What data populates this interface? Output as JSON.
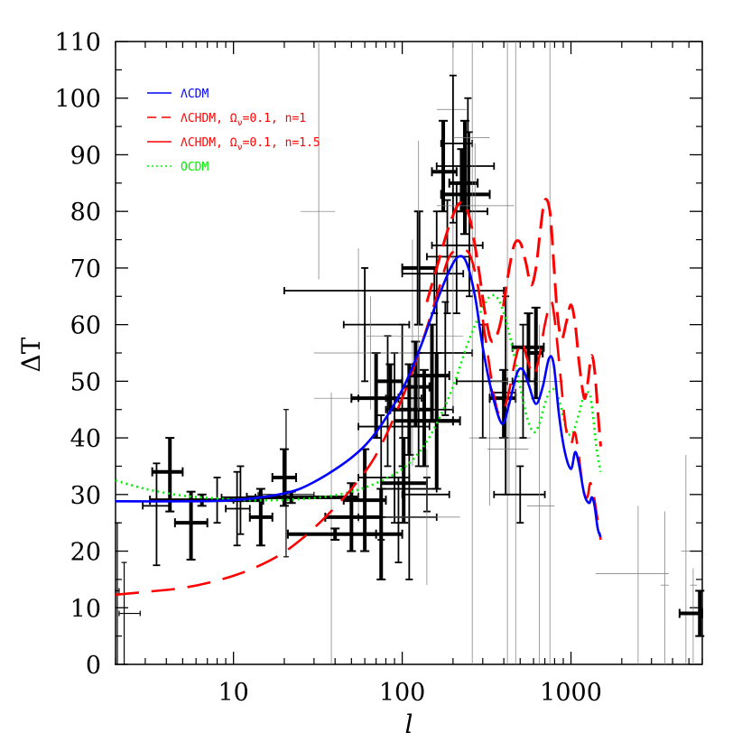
{
  "chart_data": {
    "type": "line",
    "xlabel": "l",
    "ylabel": "ΔT",
    "xscale": "log",
    "xlim": [
      2,
      6000
    ],
    "ylim": [
      0,
      110
    ],
    "x_ticks": [
      {
        "value": 10,
        "label": "10"
      },
      {
        "value": 100,
        "label": "100"
      },
      {
        "value": 1000,
        "label": "1000"
      }
    ],
    "y_ticks": [
      {
        "value": 0,
        "label": "0"
      },
      {
        "value": 10,
        "label": "10"
      },
      {
        "value": 20,
        "label": "20"
      },
      {
        "value": 30,
        "label": "30"
      },
      {
        "value": 40,
        "label": "40"
      },
      {
        "value": 50,
        "label": "50"
      },
      {
        "value": 60,
        "label": "60"
      },
      {
        "value": 70,
        "label": "70"
      },
      {
        "value": 80,
        "label": "80"
      },
      {
        "value": 90,
        "label": "90"
      },
      {
        "value": 100,
        "label": "100"
      },
      {
        "value": 110,
        "label": "110"
      }
    ],
    "legend_position": "top-left",
    "series": [
      {
        "name": "ΛCDM",
        "label_main": "ΛCDM",
        "label_sub": "",
        "label_tail": "",
        "color": "#0000ff",
        "dash": "solid",
        "x": [
          2,
          5,
          10,
          20,
          30,
          50,
          70,
          100,
          130,
          160,
          190,
          215,
          240,
          270,
          300,
          340,
          390,
          430,
          480,
          520,
          560,
          620,
          680,
          740,
          790,
          850,
          920,
          1000,
          1060,
          1120,
          1200,
          1280,
          1330,
          1380,
          1440,
          1500
        ],
        "y": [
          28.8,
          28.8,
          29.0,
          30.2,
          32.2,
          36.5,
          41.0,
          48.5,
          56.5,
          64.0,
          69.5,
          72.0,
          71.0,
          65.0,
          56.0,
          48.0,
          42.5,
          46.0,
          51.5,
          52.0,
          49.5,
          46.0,
          49.0,
          54.0,
          53.0,
          44.0,
          37.5,
          34.5,
          37.5,
          35.0,
          30.0,
          28.5,
          29.5,
          28.0,
          24.0,
          22.5
        ]
      },
      {
        "name": "ΛCHDM, Ων=0.1, n=1",
        "label_main": "ΛCHDM, Ω",
        "label_sub": "ν",
        "label_tail": "=0.1, n=1",
        "color": "#ff0000",
        "dash": "long",
        "x": [
          2,
          3,
          5,
          8,
          12,
          18,
          25,
          35,
          50,
          70,
          100,
          130,
          160,
          190,
          220,
          250,
          280,
          310,
          350,
          380,
          420,
          470,
          510,
          550,
          600,
          650,
          700,
          760,
          800,
          860,
          930,
          1000,
          1050,
          1100,
          1180,
          1250,
          1300,
          1360,
          1430,
          1500
        ],
        "y": [
          12.3,
          12.8,
          13.5,
          14.8,
          16.5,
          19.0,
          22.0,
          26.0,
          31.0,
          37.0,
          47.0,
          56.5,
          65.0,
          72.0,
          73.0,
          72.5,
          67.0,
          58.0,
          47.5,
          44.0,
          47.0,
          54.0,
          57.0,
          54.0,
          51.0,
          54.5,
          60.0,
          64.0,
          61.0,
          52.0,
          42.0,
          39.0,
          41.0,
          38.0,
          31.0,
          29.5,
          32.0,
          30.0,
          26.0,
          22.0
        ]
      },
      {
        "name": "ΛCHDM, Ων=0.1, n=1.5",
        "label_main": "ΛCHDM, Ω",
        "label_sub": "ν",
        "label_tail": "=0.1, n=1.5",
        "color": "#ff0000",
        "dash": "dashed",
        "x": [
          140,
          160,
          190,
          220,
          250,
          280,
          310,
          340,
          380,
          420,
          460,
          500,
          540,
          580,
          620,
          660,
          700,
          750,
          790,
          830,
          880,
          940,
          1000,
          1060,
          1120,
          1200,
          1260,
          1320,
          1380,
          1440,
          1500
        ],
        "y": [
          64.0,
          70.0,
          77.5,
          81.5,
          79.0,
          71.0,
          62.0,
          57.0,
          60.0,
          68.0,
          74.0,
          74.5,
          71.0,
          67.0,
          70.0,
          77.0,
          82.0,
          80.0,
          71.0,
          62.0,
          57.5,
          60.5,
          63.5,
          60.0,
          53.0,
          47.0,
          50.0,
          54.5,
          52.0,
          45.0,
          38.5
        ]
      },
      {
        "name": "OCDM",
        "label_main": "OCDM",
        "label_sub": "",
        "label_tail": "",
        "color": "#00ee00",
        "dash": "dotted",
        "x": [
          2,
          3,
          5,
          8,
          12,
          18,
          25,
          35,
          50,
          70,
          100,
          130,
          160,
          200,
          240,
          280,
          320,
          360,
          400,
          450,
          500,
          550,
          600,
          650,
          700,
          760,
          820,
          880,
          940,
          1000,
          1060,
          1120,
          1180,
          1250,
          1300,
          1350,
          1420,
          1500
        ],
        "y": [
          32.5,
          31.0,
          29.8,
          29.3,
          29.0,
          29.0,
          29.2,
          29.6,
          30.5,
          32.0,
          34.5,
          38.0,
          42.5,
          49.0,
          56.0,
          61.0,
          64.5,
          65.0,
          62.0,
          56.0,
          49.0,
          43.5,
          41.0,
          42.5,
          46.0,
          48.5,
          48.0,
          45.0,
          41.5,
          40.5,
          42.0,
          44.5,
          47.0,
          48.0,
          47.5,
          44.0,
          38.0,
          34.0
        ]
      }
    ],
    "data_points": [
      {
        "x": 2.05,
        "y": 13,
        "xlo": 2,
        "xhi": 2.1,
        "ylo": 0,
        "yhi": 25,
        "w": "thin"
      },
      {
        "x": 2.25,
        "y": 9,
        "xlo": 2.1,
        "xhi": 2.8,
        "ylo": 0,
        "yhi": 18,
        "w": "thin"
      },
      {
        "x": 3.5,
        "y": 28,
        "xlo": 2.9,
        "xhi": 4.2,
        "ylo": 17.5,
        "yhi": 35.5,
        "w": "medium"
      },
      {
        "x": 4.2,
        "y": 34,
        "xlo": 3.3,
        "xhi": 5.0,
        "ylo": 27,
        "yhi": 40,
        "w": "bold"
      },
      {
        "x": 5.6,
        "y": 25,
        "xlo": 4.5,
        "xhi": 7.0,
        "ylo": 18.5,
        "yhi": 30.5,
        "w": "bold"
      },
      {
        "x": 6.5,
        "y": 29,
        "xlo": 3.2,
        "xhi": 15.0,
        "ylo": 28,
        "yhi": 30,
        "w": "bold"
      },
      {
        "x": 8.0,
        "y": 29,
        "xlo": 6.5,
        "xhi": 10.0,
        "ylo": 25,
        "yhi": 33,
        "w": "medium"
      },
      {
        "x": 10.5,
        "y": 27.5,
        "xlo": 9.0,
        "xhi": 12.5,
        "ylo": 21,
        "yhi": 34,
        "w": "medium"
      },
      {
        "x": 11.0,
        "y": 29.5,
        "xlo": 8.5,
        "xhi": 13.5,
        "ylo": 23,
        "yhi": 35,
        "w": "medium"
      },
      {
        "x": 14.5,
        "y": 26,
        "xlo": 12.5,
        "xhi": 17.0,
        "ylo": 21,
        "yhi": 31,
        "w": "bold"
      },
      {
        "x": 20.0,
        "y": 33,
        "xlo": 17.0,
        "xhi": 23.5,
        "ylo": 28,
        "yhi": 38,
        "w": "bold"
      },
      {
        "x": 20.5,
        "y": 30,
        "xlo": 14.0,
        "xhi": 30.0,
        "ylo": 19,
        "yhi": 45,
        "w": "thin"
      },
      {
        "x": 22.0,
        "y": 29.5,
        "xlo": 12.0,
        "xhi": 55.0,
        "ylo": 28.5,
        "yhi": 30.5,
        "w": "bold"
      },
      {
        "x": 32.0,
        "y": 80,
        "xlo": 25.0,
        "xhi": 40.0,
        "ylo": 68,
        "yhi": 110,
        "w": "hair"
      },
      {
        "x": 38.0,
        "y": 23,
        "xlo": 21.0,
        "xhi": 75.0,
        "ylo": 0,
        "yhi": 48,
        "w": "hair"
      },
      {
        "x": 40.0,
        "y": 23,
        "xlo": 21.0,
        "xhi": 70.0,
        "ylo": 22,
        "yhi": 24,
        "w": "bold"
      },
      {
        "x": 50.0,
        "y": 26,
        "xlo": 35.0,
        "xhi": 75.0,
        "ylo": 20,
        "yhi": 32,
        "w": "bold"
      },
      {
        "x": 55.0,
        "y": 47,
        "xlo": 30.0,
        "xhi": 100.0,
        "ylo": 25,
        "yhi": 73.5,
        "w": "hair"
      },
      {
        "x": 60.0,
        "y": 29,
        "xlo": 45.0,
        "xhi": 80.0,
        "ylo": 20,
        "yhi": 38,
        "w": "bold"
      },
      {
        "x": 60.0,
        "y": 60,
        "xlo": 45.0,
        "xhi": 110.0,
        "ylo": 50,
        "yhi": 70,
        "w": "medium"
      },
      {
        "x": 65.0,
        "y": 55,
        "xlo": 30.0,
        "xhi": 150.0,
        "ylo": 45,
        "yhi": 65,
        "w": "hair"
      },
      {
        "x": 70.0,
        "y": 47,
        "xlo": 50.0,
        "xhi": 95.0,
        "ylo": 40,
        "yhi": 55,
        "w": "bold"
      },
      {
        "x": 75.0,
        "y": 33,
        "xlo": 55.0,
        "xhi": 110.0,
        "ylo": 22,
        "yhi": 44,
        "w": "medium"
      },
      {
        "x": 75.0,
        "y": 23,
        "xlo": 60.0,
        "xhi": 100.0,
        "ylo": 15,
        "yhi": 31,
        "w": "bold"
      },
      {
        "x": 82.0,
        "y": 47,
        "xlo": 55.0,
        "xhi": 120.0,
        "ylo": 35,
        "yhi": 58,
        "w": "medium"
      },
      {
        "x": 85.0,
        "y": 50,
        "xlo": 70.0,
        "xhi": 100.0,
        "ylo": 45,
        "yhi": 53,
        "w": "bold"
      },
      {
        "x": 90.0,
        "y": 42,
        "xlo": 55.0,
        "xhi": 145.0,
        "ylo": 25,
        "yhi": 55,
        "w": "medium"
      },
      {
        "x": 95.0,
        "y": 26,
        "xlo": 55.0,
        "xhi": 160.0,
        "ylo": 18,
        "yhi": 33,
        "w": "medium"
      },
      {
        "x": 100.0,
        "y": 47,
        "xlo": 80.0,
        "xhi": 130.0,
        "ylo": 35,
        "yhi": 60,
        "w": "medium"
      },
      {
        "x": 102.0,
        "y": 32,
        "xlo": 75.0,
        "xhi": 140.0,
        "ylo": 25,
        "yhi": 40,
        "w": "bold"
      },
      {
        "x": 110.0,
        "y": 45,
        "xlo": 85.0,
        "xhi": 150.0,
        "ylo": 37,
        "yhi": 53,
        "w": "bold"
      },
      {
        "x": 110.0,
        "y": 31,
        "xlo": 75.0,
        "xhi": 160.0,
        "ylo": 15,
        "yhi": 47,
        "w": "medium"
      },
      {
        "x": 115.0,
        "y": 55,
        "xlo": 60.0,
        "xhi": 200.0,
        "ylo": 35,
        "yhi": 75,
        "w": "hair"
      },
      {
        "x": 120.0,
        "y": 49,
        "xlo": 100.0,
        "xhi": 145.0,
        "ylo": 42,
        "yhi": 57,
        "w": "bold"
      },
      {
        "x": 125.0,
        "y": 70,
        "xlo": 100.0,
        "xhi": 160.0,
        "ylo": 60,
        "yhi": 80,
        "w": "bold"
      },
      {
        "x": 125.0,
        "y": 45,
        "xlo": 80.0,
        "xhi": 200.0,
        "ylo": 35,
        "yhi": 55,
        "w": "medium"
      },
      {
        "x": 125.0,
        "y": 58,
        "xlo": 60.0,
        "xhi": 230.0,
        "ylo": 45,
        "yhi": 92.5,
        "w": "hair"
      },
      {
        "x": 135.0,
        "y": 43,
        "xlo": 90.0,
        "xhi": 200.0,
        "ylo": 35,
        "yhi": 52,
        "w": "bold"
      },
      {
        "x": 140.0,
        "y": 30,
        "xlo": 100.0,
        "xhi": 190.0,
        "ylo": 27,
        "yhi": 33,
        "w": "medium"
      },
      {
        "x": 140.0,
        "y": 26,
        "xlo": 80.0,
        "xhi": 220.0,
        "ylo": 14,
        "yhi": 38,
        "w": "hair"
      },
      {
        "x": 150.0,
        "y": 51,
        "xlo": 110.0,
        "xhi": 190.0,
        "ylo": 43,
        "yhi": 60,
        "w": "bold"
      },
      {
        "x": 155.0,
        "y": 66,
        "xlo": 20.0,
        "xhi": 400.0,
        "ylo": 62,
        "yhi": 70,
        "w": "medium"
      },
      {
        "x": 160.0,
        "y": 43,
        "xlo": 120.0,
        "xhi": 220.0,
        "ylo": 31,
        "yhi": 55,
        "w": "bold"
      },
      {
        "x": 160.0,
        "y": 69,
        "xlo": 100.0,
        "xhi": 230.0,
        "ylo": 55,
        "yhi": 80,
        "w": "medium"
      },
      {
        "x": 175.0,
        "y": 87,
        "xlo": 150.0,
        "xhi": 210.0,
        "ylo": 80,
        "yhi": 96,
        "w": "bold"
      },
      {
        "x": 180.0,
        "y": 55,
        "xlo": 120.0,
        "xhi": 260.0,
        "ylo": 44,
        "yhi": 64,
        "w": "medium"
      },
      {
        "x": 185.0,
        "y": 72,
        "xlo": 140.0,
        "xhi": 250.0,
        "ylo": 62,
        "yhi": 82,
        "w": "medium"
      },
      {
        "x": 200.0,
        "y": 98,
        "xlo": 160.0,
        "xhi": 240.0,
        "ylo": 45,
        "yhi": 110,
        "w": "hair"
      },
      {
        "x": 200.0,
        "y": 92,
        "xlo": 170.0,
        "xhi": 260.0,
        "ylo": 78,
        "yhi": 104,
        "w": "medium"
      },
      {
        "x": 210.0,
        "y": 74,
        "xlo": 150.0,
        "xhi": 300.0,
        "ylo": 62,
        "yhi": 85,
        "w": "medium"
      },
      {
        "x": 225.0,
        "y": 85,
        "xlo": 190.0,
        "xhi": 280.0,
        "ylo": 80,
        "yhi": 91,
        "w": "bold"
      },
      {
        "x": 235.0,
        "y": 83,
        "xlo": 170.0,
        "xhi": 330.0,
        "ylo": 76,
        "yhi": 96,
        "w": "bold"
      },
      {
        "x": 245.0,
        "y": 88,
        "xlo": 160.0,
        "xhi": 350.0,
        "ylo": 80,
        "yhi": 100,
        "w": "medium"
      },
      {
        "x": 250.0,
        "y": 80,
        "xlo": 200.0,
        "xhi": 320.0,
        "ylo": 65,
        "yhi": 94,
        "w": "medium"
      },
      {
        "x": 260.0,
        "y": 93,
        "xlo": 200.0,
        "xhi": 330.0,
        "ylo": 0,
        "yhi": 110,
        "w": "hair"
      },
      {
        "x": 270.0,
        "y": 81,
        "xlo": 160.0,
        "xhi": 460.0,
        "ylo": 70,
        "yhi": 92,
        "w": "hair"
      },
      {
        "x": 300.0,
        "y": 50,
        "xlo": 210.0,
        "xhi": 420.0,
        "ylo": 40,
        "yhi": 60,
        "w": "medium"
      },
      {
        "x": 330.0,
        "y": 40,
        "xlo": 250.0,
        "xhi": 430.0,
        "ylo": 28,
        "yhi": 52,
        "w": "hair"
      },
      {
        "x": 400.0,
        "y": 47,
        "xlo": 330.0,
        "xhi": 470.0,
        "ylo": 40,
        "yhi": 52,
        "w": "bold"
      },
      {
        "x": 410.0,
        "y": 48,
        "xlo": 340.0,
        "xhi": 470.0,
        "ylo": 30,
        "yhi": 65,
        "w": "medium"
      },
      {
        "x": 420.0,
        "y": 50,
        "xlo": 340.0,
        "xhi": 520.0,
        "ylo": 0,
        "yhi": 110,
        "w": "hair"
      },
      {
        "x": 430.0,
        "y": 38,
        "xlo": 320.0,
        "xhi": 560.0,
        "ylo": 30,
        "yhi": 46,
        "w": "hair"
      },
      {
        "x": 470.0,
        "y": 40,
        "xlo": 380.0,
        "xhi": 580.0,
        "ylo": 0,
        "yhi": 110,
        "w": "hair"
      },
      {
        "x": 500.0,
        "y": 30,
        "xlo": 350.0,
        "xhi": 700.0,
        "ylo": 25,
        "yhi": 35,
        "w": "medium"
      },
      {
        "x": 520.0,
        "y": 50,
        "xlo": 450.0,
        "xhi": 610.0,
        "ylo": 40,
        "yhi": 60,
        "w": "medium"
      },
      {
        "x": 560.0,
        "y": 56,
        "xlo": 450.0,
        "xhi": 690.0,
        "ylo": 50,
        "yhi": 62,
        "w": "bold"
      },
      {
        "x": 620.0,
        "y": 55,
        "xlo": 560.0,
        "xhi": 680.0,
        "ylo": 47,
        "yhi": 63,
        "w": "bold"
      },
      {
        "x": 650.0,
        "y": 28,
        "xlo": 550.0,
        "xhi": 800.0,
        "ylo": 0,
        "yhi": 60,
        "w": "hair"
      },
      {
        "x": 750.0,
        "y": 50,
        "xlo": 620.0,
        "xhi": 900.0,
        "ylo": 0,
        "yhi": 110,
        "w": "hair"
      },
      {
        "x": 2500.0,
        "y": 16,
        "xlo": 1400.0,
        "xhi": 3800.0,
        "ylo": 0,
        "yhi": 28,
        "w": "hair"
      },
      {
        "x": 3600.0,
        "y": 14,
        "xlo": 3400.0,
        "xhi": 3800.0,
        "ylo": 0,
        "yhi": 27,
        "w": "hair"
      },
      {
        "x": 4800.0,
        "y": 20,
        "xlo": 4500.0,
        "xhi": 5100.0,
        "ylo": 0,
        "yhi": 37,
        "w": "hair"
      },
      {
        "x": 5300.0,
        "y": 14,
        "xlo": 5100.0,
        "xhi": 5600.0,
        "ylo": 0,
        "yhi": 17,
        "w": "hair"
      },
      {
        "x": 5800.0,
        "y": 9,
        "xlo": 4400.0,
        "xhi": 6000.0,
        "ylo": 5,
        "yhi": 13,
        "w": "bold"
      }
    ]
  }
}
